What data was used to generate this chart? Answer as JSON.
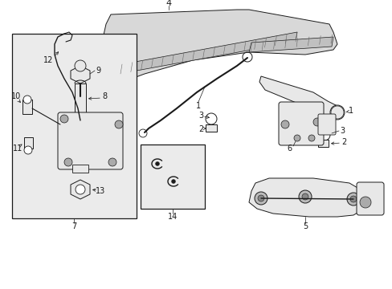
{
  "bg_color": "#ffffff",
  "line_color": "#1a1a1a",
  "fill_light": "#e8e8e8",
  "fill_box": "#ebebeb",
  "figsize": [
    4.89,
    3.6
  ],
  "dpi": 100
}
